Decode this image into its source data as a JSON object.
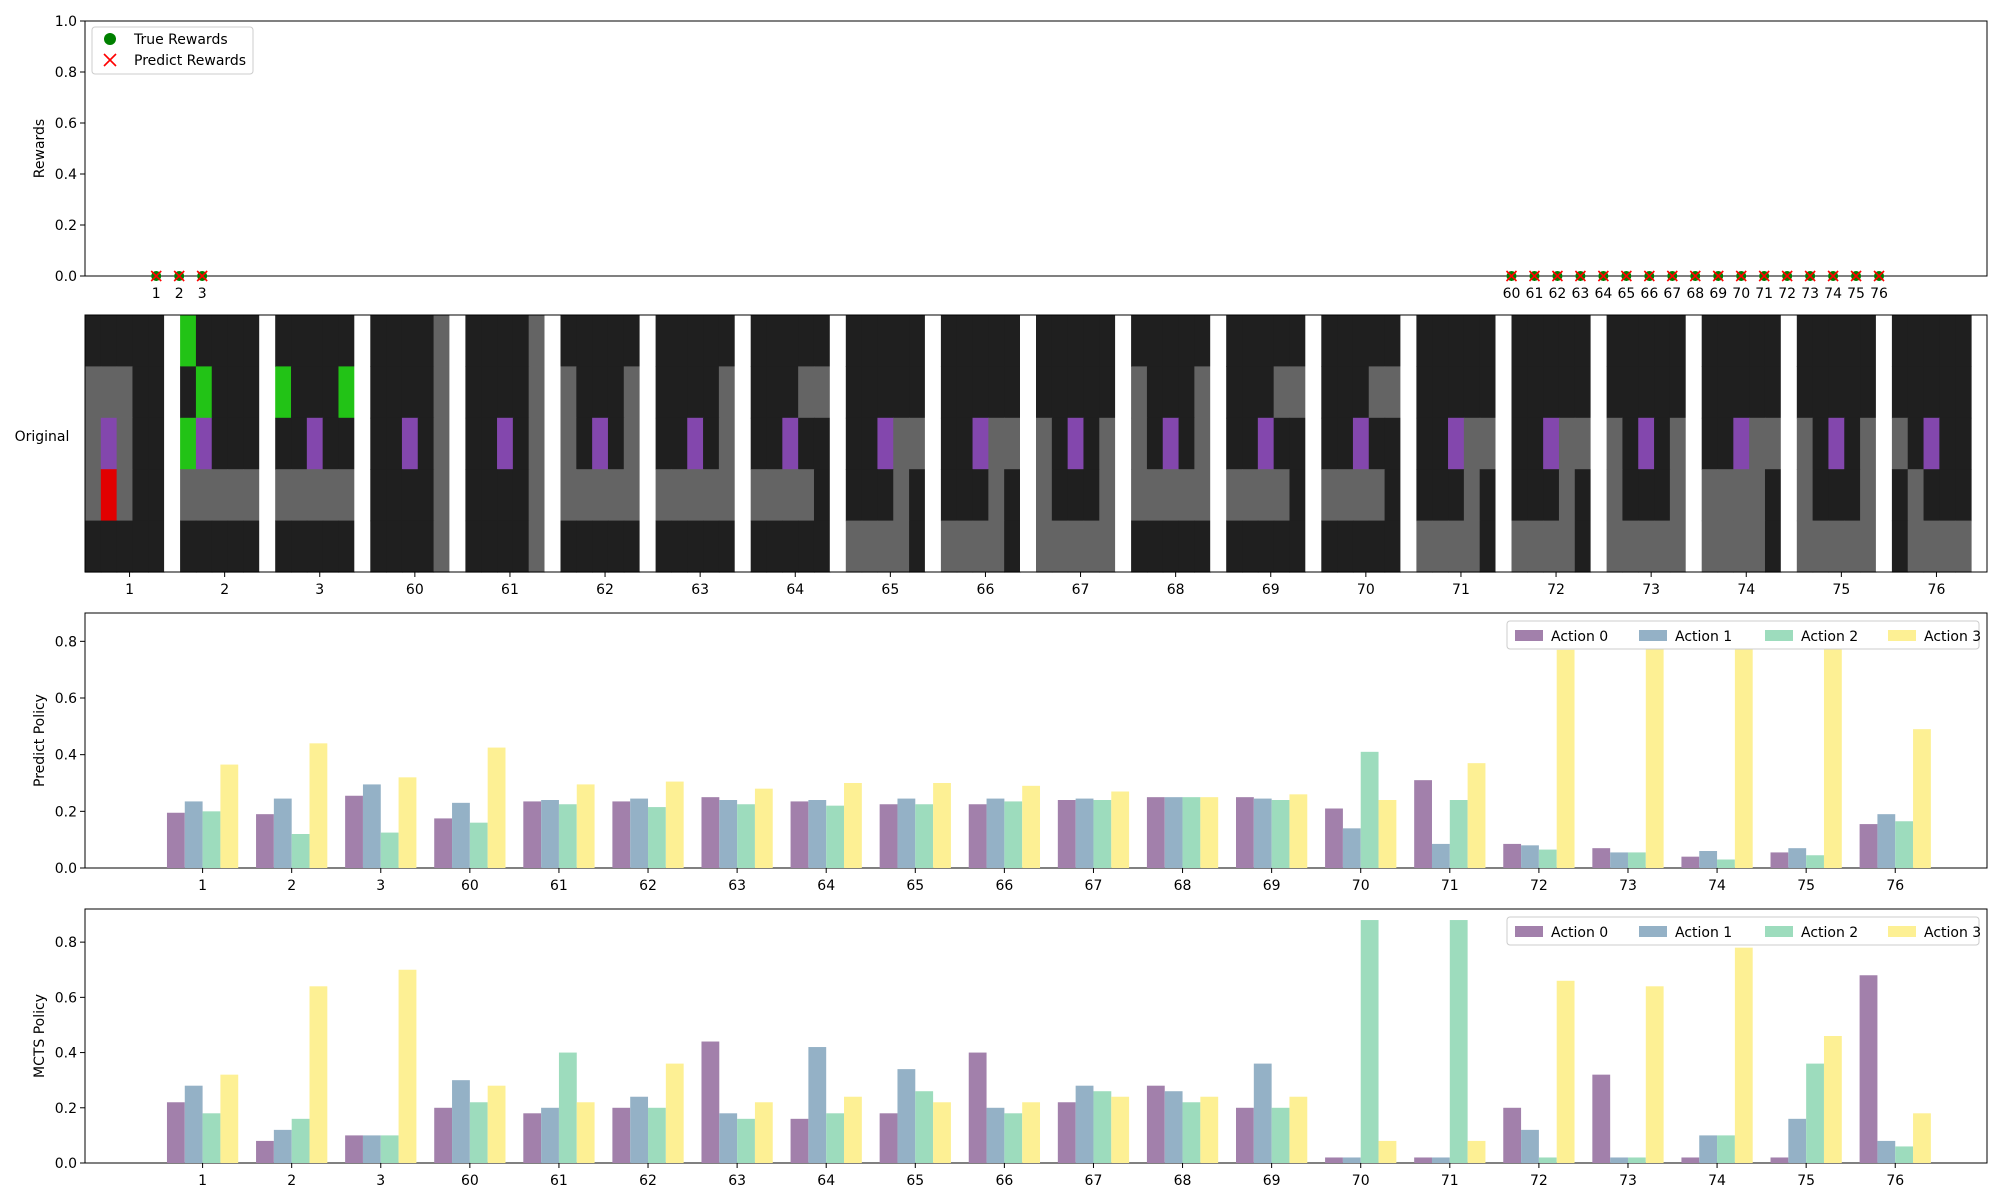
{
  "chart_data": [
    {
      "type": "scatter",
      "ylabel": "Rewards",
      "ylim": [
        0,
        1.0
      ],
      "yticks": [
        "0.0",
        "0.2",
        "0.4",
        "0.6",
        "0.8",
        "1.0"
      ],
      "legend_position": "top-left",
      "x": [
        "1",
        "2",
        "3",
        "60",
        "61",
        "62",
        "63",
        "64",
        "65",
        "66",
        "67",
        "68",
        "69",
        "70",
        "71",
        "72",
        "73",
        "74",
        "75",
        "76"
      ],
      "x_positions": [
        1,
        2,
        3,
        60,
        61,
        62,
        63,
        64,
        65,
        66,
        67,
        68,
        69,
        70,
        71,
        72,
        73,
        74,
        75,
        76
      ],
      "xlim": [
        -2.1,
        80.7
      ],
      "series": [
        {
          "name": "True Rewards",
          "marker": "circle",
          "color": "#008000",
          "values": [
            0,
            0,
            0,
            0,
            0,
            0,
            0,
            0,
            0,
            0,
            0,
            0,
            0,
            0,
            0,
            0,
            0,
            0,
            0,
            0
          ]
        },
        {
          "name": "Predict Rewards",
          "marker": "x",
          "color": "#ff0000",
          "values": [
            0,
            0,
            0,
            0,
            0,
            0,
            0,
            0,
            0,
            0,
            0,
            0,
            0,
            0,
            0,
            0,
            0,
            0,
            0,
            0
          ]
        }
      ]
    },
    {
      "type": "image-strip",
      "ylabel": "Original",
      "tick_labels": [
        "1",
        "2",
        "3",
        "60",
        "61",
        "62",
        "63",
        "64",
        "65",
        "66",
        "67",
        "68",
        "69",
        "70",
        "71",
        "72",
        "73",
        "74",
        "75",
        "76"
      ]
    },
    {
      "type": "bar",
      "ylabel": "Predict Policy",
      "ylim": [
        0,
        0.9
      ],
      "yticks": [
        "0.0",
        "0.2",
        "0.4",
        "0.6",
        "0.8"
      ],
      "legend_position": "top-right",
      "categories": [
        "1",
        "2",
        "3",
        "60",
        "61",
        "62",
        "63",
        "64",
        "65",
        "66",
        "67",
        "68",
        "69",
        "70",
        "71",
        "72",
        "73",
        "74",
        "75",
        "76"
      ],
      "series": [
        {
          "name": "Action 0",
          "color": "#a280ab",
          "values": [
            0.195,
            0.19,
            0.255,
            0.175,
            0.235,
            0.235,
            0.25,
            0.235,
            0.225,
            0.225,
            0.24,
            0.25,
            0.25,
            0.21,
            0.31,
            0.085,
            0.07,
            0.04,
            0.055,
            0.155
          ]
        },
        {
          "name": "Action 1",
          "color": "#94b1c6",
          "values": [
            0.235,
            0.245,
            0.295,
            0.23,
            0.24,
            0.245,
            0.24,
            0.24,
            0.245,
            0.245,
            0.245,
            0.25,
            0.245,
            0.14,
            0.085,
            0.08,
            0.055,
            0.06,
            0.07,
            0.19
          ]
        },
        {
          "name": "Action 2",
          "color": "#9ddcbd",
          "values": [
            0.2,
            0.12,
            0.125,
            0.16,
            0.225,
            0.215,
            0.225,
            0.22,
            0.225,
            0.235,
            0.24,
            0.25,
            0.24,
            0.41,
            0.24,
            0.065,
            0.055,
            0.03,
            0.045,
            0.165
          ]
        },
        {
          "name": "Action 3",
          "color": "#fdf094",
          "values": [
            0.365,
            0.44,
            0.32,
            0.425,
            0.295,
            0.305,
            0.28,
            0.3,
            0.3,
            0.29,
            0.27,
            0.25,
            0.26,
            0.24,
            0.37,
            0.77,
            0.82,
            0.87,
            0.83,
            0.49
          ]
        }
      ]
    },
    {
      "type": "bar",
      "ylabel": "MCTS Policy",
      "ylim": [
        0,
        0.92
      ],
      "yticks": [
        "0.0",
        "0.2",
        "0.4",
        "0.6",
        "0.8"
      ],
      "legend_position": "top-right",
      "categories": [
        "1",
        "2",
        "3",
        "60",
        "61",
        "62",
        "63",
        "64",
        "65",
        "66",
        "67",
        "68",
        "69",
        "70",
        "71",
        "72",
        "73",
        "74",
        "75",
        "76"
      ],
      "series": [
        {
          "name": "Action 0",
          "color": "#a280ab",
          "values": [
            0.22,
            0.08,
            0.1,
            0.2,
            0.18,
            0.2,
            0.44,
            0.16,
            0.18,
            0.4,
            0.22,
            0.28,
            0.2,
            0.02,
            0.02,
            0.2,
            0.32,
            0.02,
            0.02,
            0.68
          ]
        },
        {
          "name": "Action 1",
          "color": "#94b1c6",
          "values": [
            0.28,
            0.12,
            0.1,
            0.3,
            0.2,
            0.24,
            0.18,
            0.42,
            0.34,
            0.2,
            0.28,
            0.26,
            0.36,
            0.02,
            0.02,
            0.12,
            0.02,
            0.1,
            0.16,
            0.08
          ]
        },
        {
          "name": "Action 2",
          "color": "#9ddcbd",
          "values": [
            0.18,
            0.16,
            0.1,
            0.22,
            0.4,
            0.2,
            0.16,
            0.18,
            0.26,
            0.18,
            0.26,
            0.22,
            0.2,
            0.88,
            0.88,
            0.02,
            0.02,
            0.1,
            0.36,
            0.06
          ]
        },
        {
          "name": "Action 3",
          "color": "#fdf094",
          "values": [
            0.32,
            0.64,
            0.7,
            0.28,
            0.22,
            0.36,
            0.22,
            0.24,
            0.22,
            0.22,
            0.24,
            0.24,
            0.24,
            0.08,
            0.08,
            0.66,
            0.64,
            0.78,
            0.46,
            0.18
          ]
        }
      ]
    }
  ],
  "grid_colors": {
    "background": "#1f1f1f",
    "wall": "#646464",
    "agent": "#8347ad",
    "goal": "#22c316",
    "lava": "#e20000",
    "separator": "#ffffff"
  },
  "grid_frames": [
    {
      "cells": [
        [
          0,
          0,
          0,
          0,
          0
        ],
        [
          1,
          1,
          1,
          0,
          0
        ],
        [
          1,
          3,
          1,
          0,
          0
        ],
        [
          1,
          5,
          1,
          0,
          0
        ],
        [
          0,
          0,
          0,
          0,
          0
        ]
      ]
    },
    {
      "cells": [
        [
          4,
          0,
          0,
          0,
          0
        ],
        [
          0,
          4,
          0,
          0,
          0
        ],
        [
          4,
          3,
          0,
          0,
          0
        ],
        [
          1,
          1,
          1,
          1,
          1
        ],
        [
          0,
          0,
          0,
          0,
          0
        ]
      ]
    },
    {
      "cells": [
        [
          0,
          0,
          0,
          0,
          0
        ],
        [
          4,
          0,
          0,
          0,
          4
        ],
        [
          0,
          0,
          3,
          0,
          0
        ],
        [
          1,
          1,
          1,
          1,
          1
        ],
        [
          0,
          0,
          0,
          0,
          0
        ]
      ]
    },
    {
      "cells": [
        [
          0,
          0,
          0,
          0,
          1
        ],
        [
          0,
          0,
          0,
          0,
          1
        ],
        [
          0,
          0,
          3,
          0,
          1
        ],
        [
          0,
          0,
          0,
          0,
          1
        ],
        [
          0,
          0,
          0,
          0,
          1
        ]
      ]
    },
    {
      "cells": [
        [
          0,
          0,
          0,
          0,
          1
        ],
        [
          0,
          0,
          0,
          0,
          1
        ],
        [
          0,
          0,
          3,
          0,
          1
        ],
        [
          0,
          0,
          0,
          0,
          1
        ],
        [
          0,
          0,
          0,
          0,
          1
        ]
      ]
    },
    {
      "cells": [
        [
          0,
          0,
          0,
          0,
          0
        ],
        [
          1,
          0,
          0,
          0,
          1
        ],
        [
          1,
          0,
          3,
          0,
          1
        ],
        [
          1,
          1,
          1,
          1,
          1
        ],
        [
          0,
          0,
          0,
          0,
          0
        ]
      ]
    },
    {
      "cells": [
        [
          0,
          0,
          0,
          0,
          0
        ],
        [
          0,
          0,
          0,
          0,
          1
        ],
        [
          0,
          0,
          3,
          0,
          1
        ],
        [
          1,
          1,
          1,
          1,
          1
        ],
        [
          0,
          0,
          0,
          0,
          0
        ]
      ]
    },
    {
      "cells": [
        [
          0,
          0,
          0,
          0,
          0
        ],
        [
          0,
          0,
          0,
          1,
          1
        ],
        [
          0,
          0,
          3,
          0,
          0
        ],
        [
          1,
          1,
          1,
          1,
          0
        ],
        [
          0,
          0,
          0,
          0,
          0
        ]
      ]
    },
    {
      "cells": [
        [
          0,
          0,
          0,
          0,
          0
        ],
        [
          0,
          0,
          0,
          0,
          0
        ],
        [
          0,
          0,
          3,
          1,
          1
        ],
        [
          0,
          0,
          0,
          1,
          0
        ],
        [
          1,
          1,
          1,
          1,
          0
        ]
      ]
    },
    {
      "cells": [
        [
          0,
          0,
          0,
          0,
          0
        ],
        [
          0,
          0,
          0,
          0,
          0
        ],
        [
          0,
          0,
          3,
          1,
          1
        ],
        [
          0,
          0,
          0,
          1,
          0
        ],
        [
          1,
          1,
          1,
          1,
          0
        ]
      ]
    },
    {
      "cells": [
        [
          0,
          0,
          0,
          0,
          0
        ],
        [
          0,
          0,
          0,
          0,
          0
        ],
        [
          1,
          0,
          3,
          0,
          1
        ],
        [
          1,
          0,
          0,
          0,
          1
        ],
        [
          1,
          1,
          1,
          1,
          1
        ]
      ]
    },
    {
      "cells": [
        [
          0,
          0,
          0,
          0,
          0
        ],
        [
          1,
          0,
          0,
          0,
          1
        ],
        [
          1,
          0,
          3,
          0,
          1
        ],
        [
          1,
          1,
          1,
          1,
          1
        ],
        [
          0,
          0,
          0,
          0,
          0
        ]
      ]
    },
    {
      "cells": [
        [
          0,
          0,
          0,
          0,
          0
        ],
        [
          0,
          0,
          0,
          1,
          1
        ],
        [
          0,
          0,
          3,
          0,
          0
        ],
        [
          1,
          1,
          1,
          1,
          0
        ],
        [
          0,
          0,
          0,
          0,
          0
        ]
      ]
    },
    {
      "cells": [
        [
          0,
          0,
          0,
          0,
          0
        ],
        [
          0,
          0,
          0,
          1,
          1
        ],
        [
          0,
          0,
          3,
          0,
          0
        ],
        [
          1,
          1,
          1,
          1,
          0
        ],
        [
          0,
          0,
          0,
          0,
          0
        ]
      ]
    },
    {
      "cells": [
        [
          0,
          0,
          0,
          0,
          0
        ],
        [
          0,
          0,
          0,
          0,
          0
        ],
        [
          0,
          0,
          3,
          1,
          1
        ],
        [
          0,
          0,
          0,
          1,
          0
        ],
        [
          1,
          1,
          1,
          1,
          0
        ]
      ]
    },
    {
      "cells": [
        [
          0,
          0,
          0,
          0,
          0
        ],
        [
          0,
          0,
          0,
          0,
          0
        ],
        [
          0,
          0,
          3,
          1,
          1
        ],
        [
          0,
          0,
          0,
          1,
          0
        ],
        [
          1,
          1,
          1,
          1,
          0
        ]
      ]
    },
    {
      "cells": [
        [
          0,
          0,
          0,
          0,
          0
        ],
        [
          0,
          0,
          0,
          0,
          0
        ],
        [
          1,
          0,
          3,
          0,
          1
        ],
        [
          1,
          0,
          0,
          0,
          1
        ],
        [
          1,
          1,
          1,
          1,
          1
        ]
      ]
    },
    {
      "cells": [
        [
          0,
          0,
          0,
          0,
          0
        ],
        [
          0,
          0,
          0,
          0,
          0
        ],
        [
          0,
          0,
          3,
          1,
          1
        ],
        [
          1,
          1,
          1,
          1,
          0
        ],
        [
          1,
          1,
          1,
          1,
          0
        ]
      ]
    },
    {
      "cells": [
        [
          0,
          0,
          0,
          0,
          0
        ],
        [
          0,
          0,
          0,
          0,
          0
        ],
        [
          1,
          0,
          3,
          0,
          1
        ],
        [
          1,
          0,
          0,
          0,
          1
        ],
        [
          1,
          1,
          1,
          1,
          1
        ]
      ]
    },
    {
      "cells": [
        [
          0,
          0,
          0,
          0,
          0
        ],
        [
          0,
          0,
          0,
          0,
          0
        ],
        [
          1,
          0,
          3,
          0,
          0
        ],
        [
          0,
          1,
          0,
          0,
          0
        ],
        [
          0,
          1,
          1,
          1,
          1
        ]
      ]
    }
  ]
}
